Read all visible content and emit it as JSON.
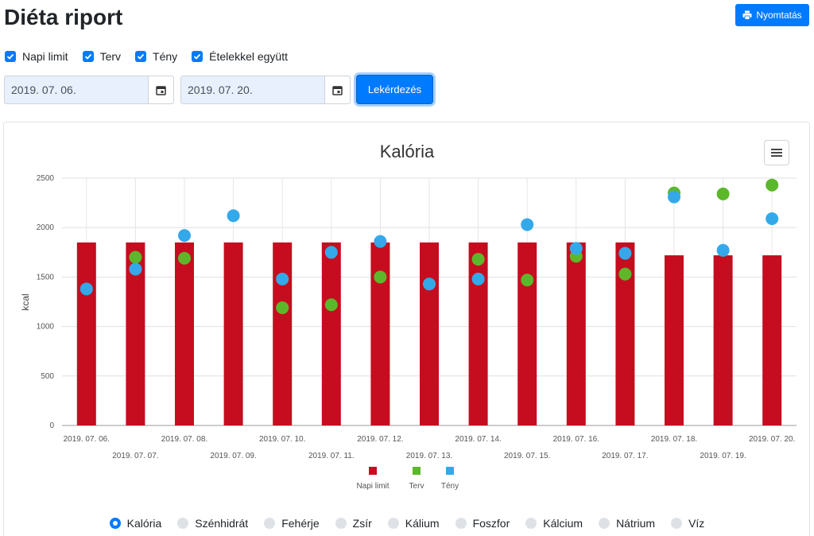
{
  "header": {
    "title": "Diéta riport",
    "print_label": "Nyomtatás"
  },
  "filters": {
    "checkboxes": [
      {
        "label": "Napi limit",
        "checked": true
      },
      {
        "label": "Terv",
        "checked": true
      },
      {
        "label": "Tény",
        "checked": true
      },
      {
        "label": "Ételekkel együtt",
        "checked": true
      }
    ],
    "date_from": "2019. 07. 06.",
    "date_to": "2019. 07. 20.",
    "query_label": "Lekérdezés"
  },
  "chart_data": {
    "type": "bar",
    "title": "Kalória",
    "ylabel": "kcal",
    "xlabel": "",
    "ylim": [
      0,
      2500
    ],
    "yticks": [
      0,
      500,
      1000,
      1500,
      2000,
      2500
    ],
    "grid": true,
    "legend_position": "bottom",
    "categories": [
      "2019. 07. 06.",
      "2019. 07. 07.",
      "2019. 07. 08.",
      "2019. 07. 09.",
      "2019. 07. 10.",
      "2019. 07. 11.",
      "2019. 07. 12.",
      "2019. 07. 13.",
      "2019. 07. 14.",
      "2019. 07. 15.",
      "2019. 07. 16.",
      "2019. 07. 17.",
      "2019. 07. 18.",
      "2019. 07. 19.",
      "2019. 07. 20."
    ],
    "series": [
      {
        "name": "Napi limit",
        "type": "bar",
        "color": "#c50d1f",
        "values": [
          1850,
          1850,
          1850,
          1850,
          1850,
          1850,
          1850,
          1850,
          1850,
          1850,
          1850,
          1850,
          1720,
          1720,
          1720
        ]
      },
      {
        "name": "Terv",
        "type": "scatter",
        "color": "#5cb82a",
        "values": [
          null,
          1700,
          1690,
          null,
          1190,
          1220,
          1500,
          null,
          1680,
          1470,
          1710,
          1530,
          2350,
          2340,
          2430
        ]
      },
      {
        "name": "Tény",
        "type": "scatter",
        "color": "#33a9ea",
        "values": [
          1380,
          1580,
          1920,
          2120,
          1480,
          1750,
          1860,
          1430,
          1480,
          2030,
          1790,
          1740,
          2310,
          1770,
          2090
        ]
      }
    ]
  },
  "nutrient_options": {
    "selected": "Kalória",
    "items": [
      "Kalória",
      "Szénhidrát",
      "Fehérje",
      "Zsír",
      "Kálium",
      "Foszfor",
      "Kálcium",
      "Nátrium",
      "Víz"
    ]
  }
}
